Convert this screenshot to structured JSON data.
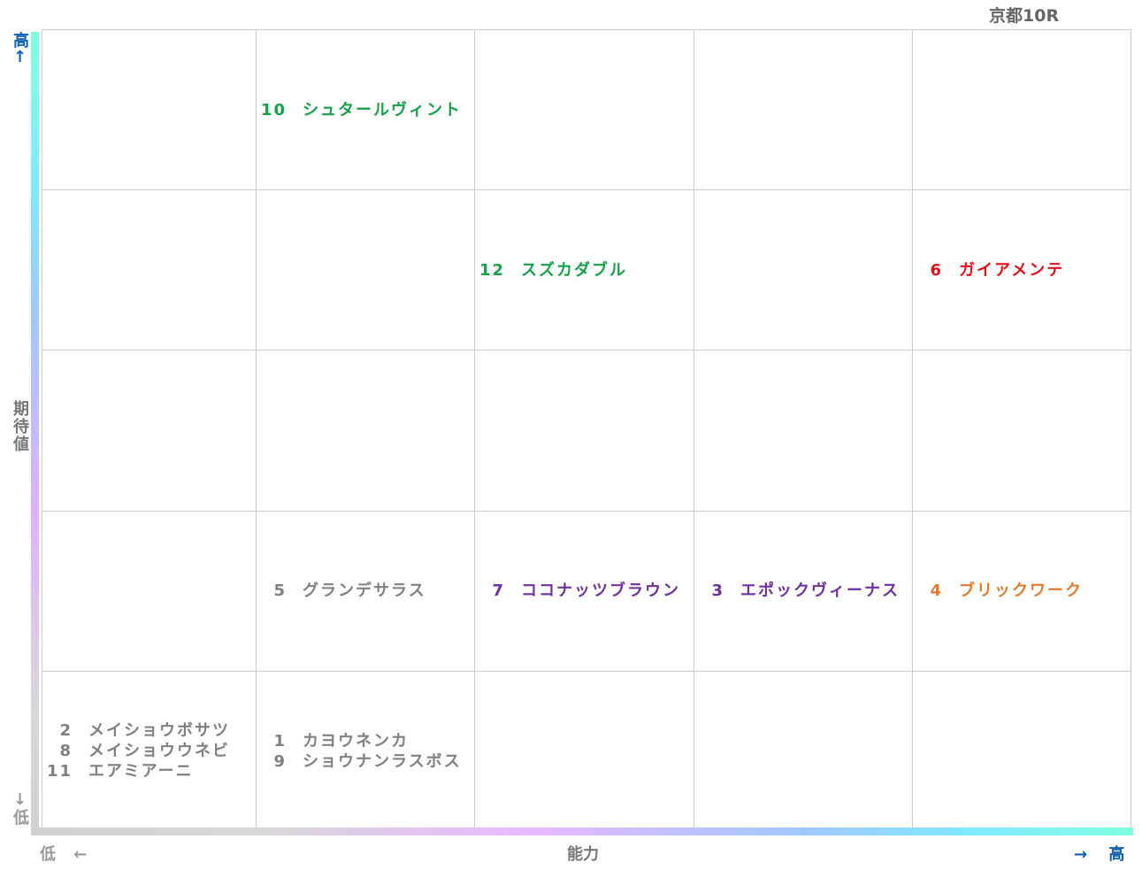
{
  "title": "京都10R",
  "y_axis": {
    "label": "期待値",
    "high": "高↑",
    "low": "↓低"
  },
  "x_axis": {
    "label": "能力",
    "low": "低 ←",
    "high": "→ 高"
  },
  "rows": [
    [
      [],
      [
        {
          "number": 10,
          "name": "シュタールヴィント",
          "color": "#16a04a"
        }
      ],
      [],
      [],
      []
    ],
    [
      [],
      [],
      [
        {
          "number": 12,
          "name": "スズカダブル",
          "color": "#16a04a"
        }
      ],
      [],
      [
        {
          "number": 6,
          "name": "ガイアメンテ",
          "color": "#e0101a"
        }
      ]
    ],
    [
      [],
      [],
      [],
      [],
      []
    ],
    [
      [],
      [
        {
          "number": 5,
          "name": "グランデサラス",
          "color": "#808080"
        }
      ],
      [
        {
          "number": 7,
          "name": "ココナッツブラウン",
          "color": "#7030a0"
        }
      ],
      [
        {
          "number": 3,
          "name": "エポックヴィーナス",
          "color": "#7030a0"
        }
      ],
      [
        {
          "number": 4,
          "name": "ブリックワーク",
          "color": "#e07b30"
        }
      ]
    ],
    [
      [
        {
          "number": 2,
          "name": "メイショウボサツ",
          "color": "#808080"
        },
        {
          "number": 8,
          "name": "メイショウウネビ",
          "color": "#808080"
        },
        {
          "number": 11,
          "name": "エアミアーニ",
          "color": "#808080"
        }
      ],
      [
        {
          "number": 1,
          "name": "カヨウネンカ",
          "color": "#808080"
        },
        {
          "number": 9,
          "name": "ショウナンラスボス",
          "color": "#808080"
        }
      ],
      [],
      [],
      []
    ]
  ]
}
